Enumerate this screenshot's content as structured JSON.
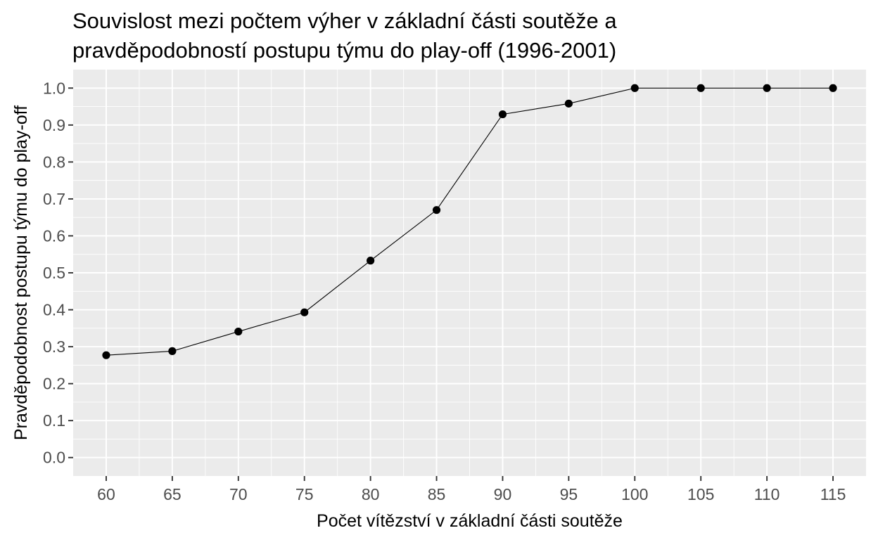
{
  "chart_data": {
    "type": "line",
    "title_lines": [
      "Souvislost mezi počtem výher v základní části soutěže a",
      "pravděpodobností postupu týmu do play-off (1996-2001)"
    ],
    "xlabel": "Počet vítězství v základní části soutěže",
    "ylabel": "Pravděpodobnost postupu týmu do play-off",
    "x": [
      60,
      65,
      70,
      75,
      80,
      85,
      90,
      95,
      100,
      105,
      110,
      115
    ],
    "y": [
      0.277,
      0.288,
      0.341,
      0.393,
      0.533,
      0.67,
      0.929,
      0.958,
      1.0,
      1.0,
      1.0,
      1.0
    ],
    "xlim": [
      57.5,
      117.5
    ],
    "ylim": [
      -0.05,
      1.05
    ],
    "x_ticks": [
      60,
      65,
      70,
      75,
      80,
      85,
      90,
      95,
      100,
      105,
      110,
      115
    ],
    "x_tick_labels": [
      "60",
      "65",
      "70",
      "75",
      "80",
      "85",
      "90",
      "95",
      "100",
      "105",
      "110",
      "115"
    ],
    "y_ticks": [
      0,
      0.1,
      0.2,
      0.3,
      0.4,
      0.5,
      0.6,
      0.7,
      0.8,
      0.9,
      1.0
    ],
    "y_tick_labels": [
      "0.0",
      "0.1",
      "0.2",
      "0.3",
      "0.4",
      "0.5",
      "0.6",
      "0.7",
      "0.8",
      "0.9",
      "1.0"
    ],
    "grid": true,
    "legend": "none",
    "colors": {
      "panel_background": "#ebebeb",
      "grid_major": "#ffffff",
      "line": "#000000",
      "points": "#000000",
      "tick_text": "#4d4d4d"
    }
  }
}
